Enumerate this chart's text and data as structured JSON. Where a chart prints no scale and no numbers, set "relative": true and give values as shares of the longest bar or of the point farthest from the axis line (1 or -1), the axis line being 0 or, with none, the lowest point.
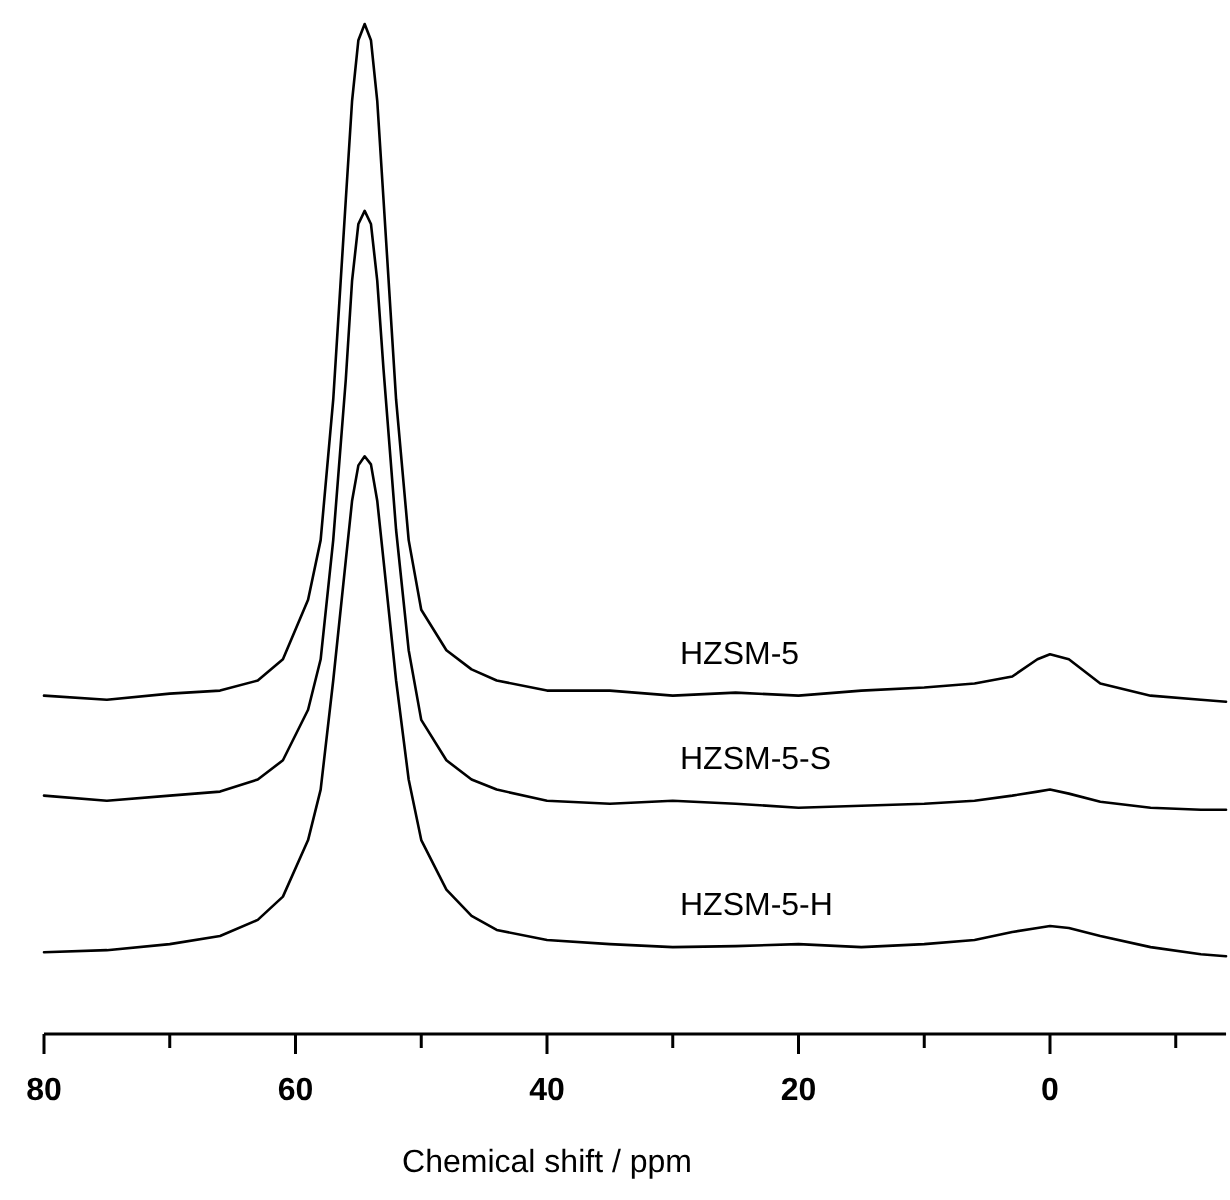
{
  "chart_data": {
    "type": "line",
    "relative": true,
    "xlabel": "Chemical shift / ppm",
    "xlim": [
      80,
      -14
    ],
    "xticks": [
      80,
      {
        "value": 70,
        "label": null
      },
      60,
      {
        "value": 50,
        "label": null
      },
      40,
      {
        "value": 30,
        "label": null
      },
      20,
      {
        "value": 10,
        "label": null
      },
      0,
      {
        "value": -10,
        "label": null
      }
    ],
    "series": [
      {
        "name": "HZSM-5",
        "color": "#000000",
        "x": [
          80,
          75,
          70,
          66,
          63,
          61,
          59,
          58,
          57,
          56,
          55.5,
          55,
          54.5,
          54,
          53.5,
          53,
          52,
          51,
          50,
          48,
          46,
          44,
          40,
          35,
          30,
          25,
          20,
          15,
          10,
          6,
          3,
          1,
          0,
          -1.5,
          -4,
          -8,
          -12,
          -14
        ],
        "values": [
          0.335,
          0.331,
          0.337,
          0.34,
          0.35,
          0.371,
          0.43,
          0.489,
          0.628,
          0.826,
          0.924,
          0.984,
          1,
          0.984,
          0.924,
          0.826,
          0.628,
          0.489,
          0.42,
          0.38,
          0.361,
          0.35,
          0.34,
          0.34,
          0.335,
          0.338,
          0.335,
          0.34,
          0.343,
          0.347,
          0.354,
          0.371,
          0.376,
          0.371,
          0.347,
          0.335,
          0.331,
          0.329
        ]
      },
      {
        "name": "HZSM-5-S",
        "color": "#000000",
        "x": [
          80,
          75,
          70,
          66,
          63,
          61,
          59,
          58,
          57,
          56,
          55.5,
          55,
          54.5,
          54,
          53.5,
          53,
          52,
          51,
          50,
          48,
          46,
          44,
          40,
          35,
          30,
          25,
          20,
          15,
          10,
          6,
          3,
          1,
          0,
          -1.5,
          -4,
          -8,
          -12,
          -14
        ],
        "values": [
          0.236,
          0.231,
          0.236,
          0.24,
          0.252,
          0.271,
          0.321,
          0.371,
          0.489,
          0.648,
          0.746,
          0.802,
          0.815,
          0.802,
          0.746,
          0.658,
          0.499,
          0.38,
          0.311,
          0.271,
          0.252,
          0.242,
          0.231,
          0.228,
          0.231,
          0.228,
          0.224,
          0.226,
          0.228,
          0.231,
          0.236,
          0.24,
          0.242,
          0.238,
          0.23,
          0.224,
          0.222,
          0.222
        ]
      },
      {
        "name": "HZSM-5-H",
        "color": "#000000",
        "x": [
          80,
          75,
          70,
          66,
          63,
          61,
          59,
          58,
          57,
          56,
          55.5,
          55,
          54.5,
          54,
          53.5,
          53,
          52,
          51,
          50,
          48,
          46,
          44,
          40,
          35,
          30,
          25,
          20,
          15,
          10,
          6,
          3,
          1,
          0,
          -1.5,
          -4,
          -8,
          -12,
          -14
        ],
        "values": [
          0.081,
          0.083,
          0.089,
          0.097,
          0.113,
          0.136,
          0.192,
          0.242,
          0.35,
          0.469,
          0.528,
          0.563,
          0.572,
          0.564,
          0.528,
          0.469,
          0.35,
          0.252,
          0.192,
          0.143,
          0.117,
          0.103,
          0.093,
          0.089,
          0.086,
          0.087,
          0.089,
          0.086,
          0.089,
          0.093,
          0.101,
          0.105,
          0.107,
          0.105,
          0.097,
          0.086,
          0.079,
          0.077
        ]
      }
    ]
  }
}
